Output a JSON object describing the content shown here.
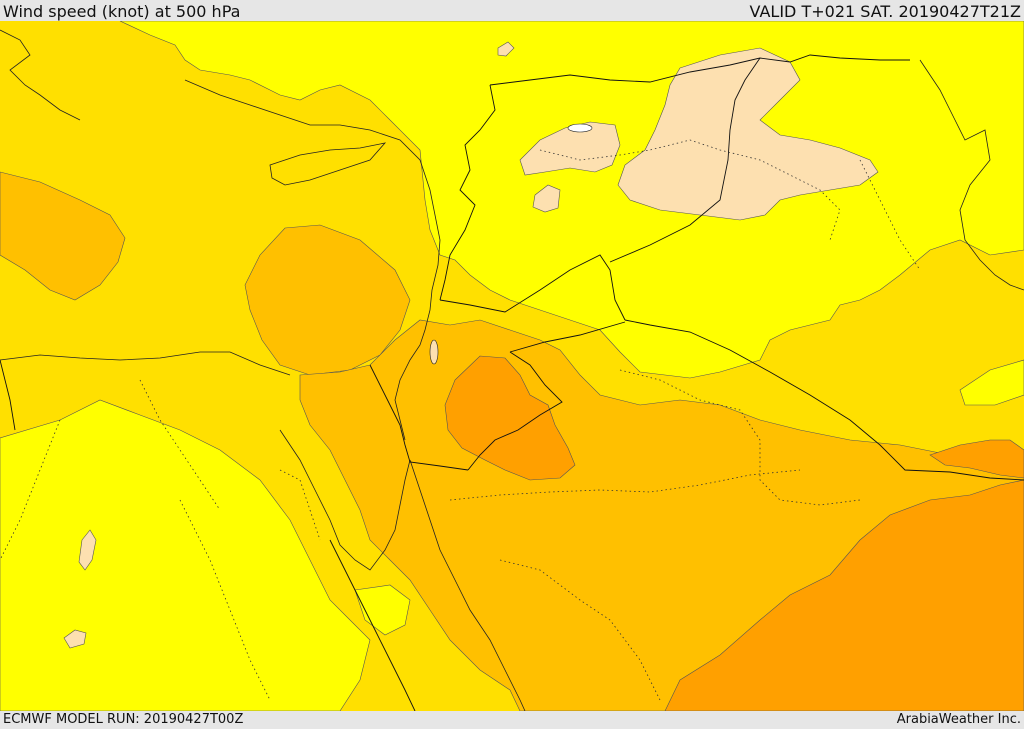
{
  "header": {
    "title": "Wind speed (knot) at 500 hPa",
    "valid": "VALID T+021 SAT. 20190427T21Z"
  },
  "footer": {
    "model_run": "ECMWF MODEL RUN: 20190427T00Z",
    "credit": "ArabiaWeather Inc."
  },
  "palette": {
    "calm_beige": "#fde0b0",
    "light_yellow": "#ffff00",
    "yellow": "#ffe000",
    "gold": "#ffc000",
    "orange": "#ffa000"
  }
}
